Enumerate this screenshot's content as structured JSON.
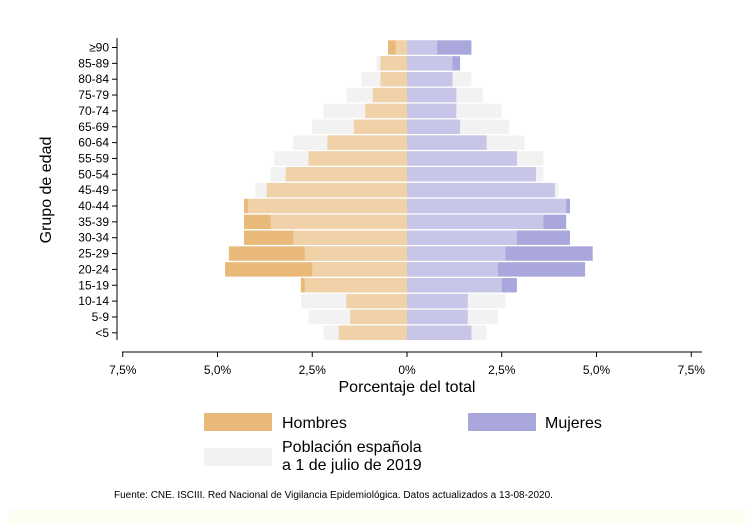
{
  "chart_data": {
    "type": "bar",
    "orientation": "horizontal",
    "subtype": "population-pyramid",
    "categories": [
      "<5",
      "5-9",
      "10-14",
      "15-19",
      "20-24",
      "25-29",
      "30-34",
      "35-39",
      "40-44",
      "45-49",
      "50-54",
      "55-59",
      "60-64",
      "65-69",
      "70-74",
      "75-79",
      "80-84",
      "85-89",
      "≥90"
    ],
    "series": [
      {
        "name": "Hombres",
        "side": "left",
        "color": "#e9b97a",
        "values": [
          1.8,
          1.5,
          1.6,
          2.8,
          4.8,
          4.7,
          4.3,
          4.3,
          4.3,
          3.7,
          3.2,
          2.6,
          2.1,
          1.4,
          1.1,
          0.9,
          0.7,
          0.7,
          0.5
        ]
      },
      {
        "name": "Mujeres",
        "side": "right",
        "color": "#a9a7dc",
        "values": [
          1.7,
          1.6,
          1.6,
          2.9,
          4.7,
          4.9,
          4.3,
          4.2,
          4.3,
          3.9,
          3.4,
          2.9,
          2.1,
          1.4,
          1.3,
          1.3,
          1.2,
          1.4,
          1.7
        ]
      },
      {
        "name": "Población española a 1 de julio de 2019",
        "color": "#f2f2f2",
        "overlay": true,
        "left_values": [
          2.2,
          2.6,
          2.8,
          2.7,
          2.5,
          2.7,
          3.0,
          3.6,
          4.2,
          4.0,
          3.6,
          3.5,
          3.0,
          2.5,
          2.2,
          1.6,
          1.2,
          0.8,
          0.3
        ],
        "right_values": [
          2.1,
          2.4,
          2.6,
          2.5,
          2.4,
          2.6,
          2.9,
          3.6,
          4.2,
          4.0,
          3.6,
          3.6,
          3.1,
          2.7,
          2.5,
          2.0,
          1.7,
          1.2,
          0.8
        ]
      }
    ],
    "xlabel": "Porcentaje del total",
    "ylabel": "Grupo de edad",
    "xlim": [
      -7.5,
      7.5
    ],
    "x_ticks": [
      -7.5,
      -5.0,
      -2.5,
      0,
      2.5,
      5.0,
      7.5
    ],
    "x_tick_labels": [
      "7,5%",
      "5,0%",
      "2,5%",
      "0%",
      "2,5%",
      "5,0%",
      "7,5%"
    ],
    "grid": false,
    "legend_position": "bottom",
    "legend": [
      {
        "label": "Hombres",
        "color": "#e9b97a"
      },
      {
        "label": "Mujeres",
        "color": "#a9a7dc"
      },
      {
        "label_lines": [
          "Población española",
          "a 1 de julio de 2019"
        ],
        "color": "#f2f2f2"
      }
    ],
    "source_note": "Fuente: CNE. ISCIII. Red Nacional de Vigilancia Epidemiológica. Datos actualizados a 13-08-2020."
  }
}
